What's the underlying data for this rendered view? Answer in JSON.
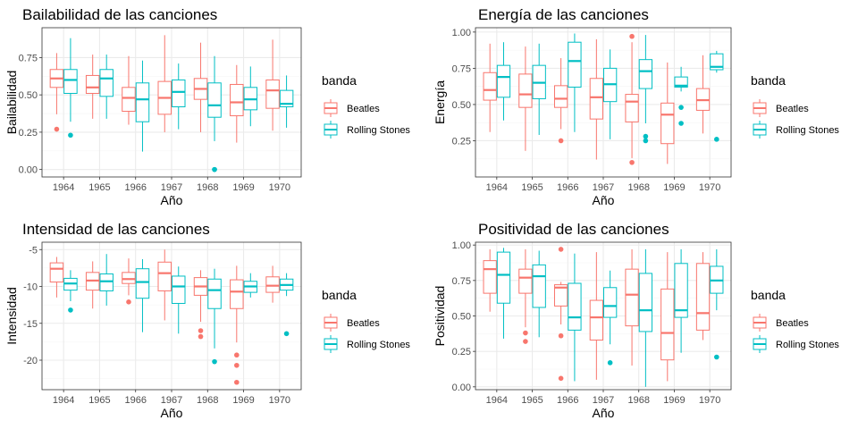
{
  "colors": {
    "Beatles": "#F8766D",
    "Rolling Stones": "#00BFC4",
    "panel_border": "#333333",
    "grid_major": "#ebebeb",
    "grid_minor": "#f5f5f5"
  },
  "chart_data": [
    {
      "type": "boxplot",
      "title": "Bailabilidad de las canciones",
      "xlabel": "Año",
      "ylabel": "Bailabilidad",
      "ylim": [
        -0.05,
        0.95
      ],
      "y_ticks": [
        0.0,
        0.25,
        0.5,
        0.75
      ],
      "y_tick_labels": [
        "0.00",
        "0.25",
        "0.50",
        "0.75"
      ],
      "categories": [
        "1964",
        "1965",
        "1966",
        "1967",
        "1968",
        "1969",
        "1970"
      ],
      "legend": {
        "title": "banda",
        "position": "right"
      },
      "series": [
        {
          "name": "Beatles",
          "boxes": [
            {
              "low": 0.37,
              "q1": 0.55,
              "median": 0.61,
              "q3": 0.67,
              "high": 0.78,
              "outliers": [
                0.27
              ]
            },
            {
              "low": 0.34,
              "q1": 0.51,
              "median": 0.55,
              "q3": 0.63,
              "high": 0.77,
              "outliers": []
            },
            {
              "low": 0.3,
              "q1": 0.39,
              "median": 0.48,
              "q3": 0.55,
              "high": 0.76,
              "outliers": []
            },
            {
              "low": 0.25,
              "q1": 0.37,
              "median": 0.48,
              "q3": 0.59,
              "high": 0.9,
              "outliers": []
            },
            {
              "low": 0.25,
              "q1": 0.47,
              "median": 0.54,
              "q3": 0.61,
              "high": 0.85,
              "outliers": []
            },
            {
              "low": 0.18,
              "q1": 0.36,
              "median": 0.45,
              "q3": 0.57,
              "high": 0.7,
              "outliers": []
            },
            {
              "low": 0.26,
              "q1": 0.41,
              "median": 0.53,
              "q3": 0.6,
              "high": 0.87,
              "outliers": []
            }
          ]
        },
        {
          "name": "Rolling Stones",
          "boxes": [
            {
              "low": 0.32,
              "q1": 0.51,
              "median": 0.6,
              "q3": 0.67,
              "high": 0.88,
              "outliers": [
                0.23
              ]
            },
            {
              "low": 0.34,
              "q1": 0.49,
              "median": 0.61,
              "q3": 0.67,
              "high": 0.77,
              "outliers": []
            },
            {
              "low": 0.12,
              "q1": 0.32,
              "median": 0.47,
              "q3": 0.58,
              "high": 0.73,
              "outliers": []
            },
            {
              "low": 0.27,
              "q1": 0.42,
              "median": 0.52,
              "q3": 0.6,
              "high": 0.71,
              "outliers": []
            },
            {
              "low": 0.19,
              "q1": 0.35,
              "median": 0.43,
              "q3": 0.58,
              "high": 0.76,
              "outliers": [
                0.0,
                0.0
              ]
            },
            {
              "low": 0.29,
              "q1": 0.4,
              "median": 0.47,
              "q3": 0.55,
              "high": 0.69,
              "outliers": []
            },
            {
              "low": 0.28,
              "q1": 0.42,
              "median": 0.44,
              "q3": 0.53,
              "high": 0.63,
              "outliers": []
            }
          ]
        }
      ]
    },
    {
      "type": "boxplot",
      "title": "Energía de las canciones",
      "xlabel": "Año",
      "ylabel": "Energía",
      "ylim": [
        0.0,
        1.03
      ],
      "y_ticks": [
        0.25,
        0.5,
        0.75,
        1.0
      ],
      "y_tick_labels": [
        "0.25",
        "0.50",
        "0.75",
        "1.00"
      ],
      "categories": [
        "1964",
        "1965",
        "1966",
        "1967",
        "1968",
        "1969",
        "1970"
      ],
      "legend": {
        "title": "banda",
        "position": "right"
      },
      "series": [
        {
          "name": "Beatles",
          "boxes": [
            {
              "low": 0.31,
              "q1": 0.53,
              "median": 0.6,
              "q3": 0.72,
              "high": 0.92,
              "outliers": []
            },
            {
              "low": 0.18,
              "q1": 0.48,
              "median": 0.57,
              "q3": 0.71,
              "high": 0.9,
              "outliers": []
            },
            {
              "low": 0.33,
              "q1": 0.48,
              "median": 0.54,
              "q3": 0.63,
              "high": 0.82,
              "outliers": [
                0.25
              ]
            },
            {
              "low": 0.12,
              "q1": 0.4,
              "median": 0.55,
              "q3": 0.68,
              "high": 0.95,
              "outliers": []
            },
            {
              "low": 0.13,
              "q1": 0.38,
              "median": 0.52,
              "q3": 0.57,
              "high": 0.93,
              "outliers": [
                0.97,
                0.1
              ]
            },
            {
              "low": 0.09,
              "q1": 0.23,
              "median": 0.43,
              "q3": 0.51,
              "high": 0.79,
              "outliers": []
            },
            {
              "low": 0.3,
              "q1": 0.46,
              "median": 0.53,
              "q3": 0.61,
              "high": 0.84,
              "outliers": []
            }
          ]
        },
        {
          "name": "Rolling Stones",
          "boxes": [
            {
              "low": 0.39,
              "q1": 0.55,
              "median": 0.69,
              "q3": 0.77,
              "high": 0.93,
              "outliers": []
            },
            {
              "low": 0.29,
              "q1": 0.54,
              "median": 0.65,
              "q3": 0.77,
              "high": 0.92,
              "outliers": []
            },
            {
              "low": 0.31,
              "q1": 0.62,
              "median": 0.8,
              "q3": 0.93,
              "high": 0.99,
              "outliers": []
            },
            {
              "low": 0.26,
              "q1": 0.52,
              "median": 0.64,
              "q3": 0.75,
              "high": 0.88,
              "outliers": []
            },
            {
              "low": 0.37,
              "q1": 0.61,
              "median": 0.73,
              "q3": 0.81,
              "high": 0.98,
              "outliers": [
                0.28,
                0.25
              ]
            },
            {
              "low": 0.59,
              "q1": 0.62,
              "median": 0.63,
              "q3": 0.69,
              "high": 0.76,
              "outliers": [
                0.48,
                0.37
              ]
            },
            {
              "low": 0.72,
              "q1": 0.74,
              "median": 0.76,
              "q3": 0.85,
              "high": 0.87,
              "outliers": [
                0.26
              ]
            }
          ]
        }
      ]
    },
    {
      "type": "boxplot",
      "title": "Intensidad de las canciones",
      "xlabel": "Año",
      "ylabel": "Intensidad",
      "ylim": [
        -24,
        -4
      ],
      "y_ticks": [
        -20,
        -15,
        -10,
        -5
      ],
      "y_tick_labels": [
        "-20",
        "-15",
        "-10",
        "-5"
      ],
      "categories": [
        "1964",
        "1965",
        "1966",
        "1967",
        "1968",
        "1969",
        "1970"
      ],
      "legend": {
        "title": "banda",
        "position": "right"
      },
      "series": [
        {
          "name": "Beatles",
          "boxes": [
            {
              "low": -11.5,
              "q1": -9.4,
              "median": -7.6,
              "q3": -6.8,
              "high": -6.0,
              "outliers": []
            },
            {
              "low": -13.0,
              "q1": -10.5,
              "median": -9.2,
              "q3": -8.1,
              "high": -6.6,
              "outliers": []
            },
            {
              "low": -11.2,
              "q1": -9.6,
              "median": -9.0,
              "q3": -8.1,
              "high": -6.2,
              "outliers": [
                -12.1
              ]
            },
            {
              "low": -14.6,
              "q1": -10.6,
              "median": -8.2,
              "q3": -6.7,
              "high": -5.0,
              "outliers": []
            },
            {
              "low": -14.8,
              "q1": -11.2,
              "median": -10.0,
              "q3": -8.8,
              "high": -7.8,
              "outliers": [
                -16.0,
                -16.8
              ]
            },
            {
              "low": -17.6,
              "q1": -13.0,
              "median": -10.7,
              "q3": -9.1,
              "high": -7.2,
              "outliers": [
                -19.3,
                -20.7,
                -23.0
              ]
            },
            {
              "low": -12.2,
              "q1": -10.8,
              "median": -9.9,
              "q3": -8.7,
              "high": -7.2,
              "outliers": []
            }
          ]
        },
        {
          "name": "Rolling Stones",
          "boxes": [
            {
              "low": -12.0,
              "q1": -10.5,
              "median": -9.6,
              "q3": -8.9,
              "high": -7.8,
              "outliers": [
                -13.2
              ]
            },
            {
              "low": -12.6,
              "q1": -10.6,
              "median": -9.3,
              "q3": -8.3,
              "high": -5.6,
              "outliers": []
            },
            {
              "low": -16.2,
              "q1": -11.6,
              "median": -9.4,
              "q3": -7.6,
              "high": -6.3,
              "outliers": []
            },
            {
              "low": -16.4,
              "q1": -12.3,
              "median": -10.0,
              "q3": -8.6,
              "high": -7.3,
              "outliers": []
            },
            {
              "low": -18.4,
              "q1": -13.0,
              "median": -10.5,
              "q3": -9.0,
              "high": -7.6,
              "outliers": [
                -20.2
              ]
            },
            {
              "low": -11.5,
              "q1": -10.8,
              "median": -10.0,
              "q3": -9.3,
              "high": -8.2,
              "outliers": []
            },
            {
              "low": -11.3,
              "q1": -10.5,
              "median": -9.8,
              "q3": -9.0,
              "high": -8.2,
              "outliers": [
                -16.4
              ]
            }
          ]
        }
      ]
    },
    {
      "type": "boxplot",
      "title": "Positividad de las canciones",
      "xlabel": "Año",
      "ylabel": "Positividad",
      "ylim": [
        -0.02,
        1.02
      ],
      "y_ticks": [
        0.0,
        0.25,
        0.5,
        0.75,
        1.0
      ],
      "y_tick_labels": [
        "0.00",
        "0.25",
        "0.50",
        "0.75",
        "1.00"
      ],
      "categories": [
        "1964",
        "1965",
        "1966",
        "1967",
        "1968",
        "1969",
        "1970"
      ],
      "legend": {
        "title": "banda",
        "position": "right"
      },
      "series": [
        {
          "name": "Beatles",
          "boxes": [
            {
              "low": 0.53,
              "q1": 0.66,
              "median": 0.83,
              "q3": 0.89,
              "high": 0.97,
              "outliers": []
            },
            {
              "low": 0.42,
              "q1": 0.66,
              "median": 0.77,
              "q3": 0.83,
              "high": 0.97,
              "outliers": [
                0.38,
                0.32
              ]
            },
            {
              "low": 0.44,
              "q1": 0.57,
              "median": 0.7,
              "q3": 0.72,
              "high": 0.74,
              "outliers": [
                0.97,
                0.36,
                0.06
              ]
            },
            {
              "low": 0.05,
              "q1": 0.33,
              "median": 0.49,
              "q3": 0.61,
              "high": 0.95,
              "outliers": []
            },
            {
              "low": 0.15,
              "q1": 0.43,
              "median": 0.65,
              "q3": 0.83,
              "high": 0.97,
              "outliers": []
            },
            {
              "low": 0.04,
              "q1": 0.19,
              "median": 0.38,
              "q3": 0.69,
              "high": 0.95,
              "outliers": []
            },
            {
              "low": 0.33,
              "q1": 0.4,
              "median": 0.52,
              "q3": 0.87,
              "high": 0.95,
              "outliers": []
            }
          ]
        },
        {
          "name": "Rolling Stones",
          "boxes": [
            {
              "low": 0.34,
              "q1": 0.59,
              "median": 0.79,
              "q3": 0.95,
              "high": 0.98,
              "outliers": []
            },
            {
              "low": 0.35,
              "q1": 0.56,
              "median": 0.78,
              "q3": 0.86,
              "high": 0.96,
              "outliers": []
            },
            {
              "low": 0.04,
              "q1": 0.4,
              "median": 0.49,
              "q3": 0.73,
              "high": 0.94,
              "outliers": []
            },
            {
              "low": 0.3,
              "q1": 0.49,
              "median": 0.57,
              "q3": 0.7,
              "high": 0.82,
              "outliers": [
                0.17
              ]
            },
            {
              "low": 0.0,
              "q1": 0.39,
              "median": 0.54,
              "q3": 0.8,
              "high": 0.97,
              "outliers": []
            },
            {
              "low": 0.24,
              "q1": 0.49,
              "median": 0.54,
              "q3": 0.87,
              "high": 0.97,
              "outliers": []
            },
            {
              "low": 0.54,
              "q1": 0.66,
              "median": 0.75,
              "q3": 0.85,
              "high": 0.97,
              "outliers": [
                0.21
              ]
            }
          ]
        }
      ]
    }
  ]
}
